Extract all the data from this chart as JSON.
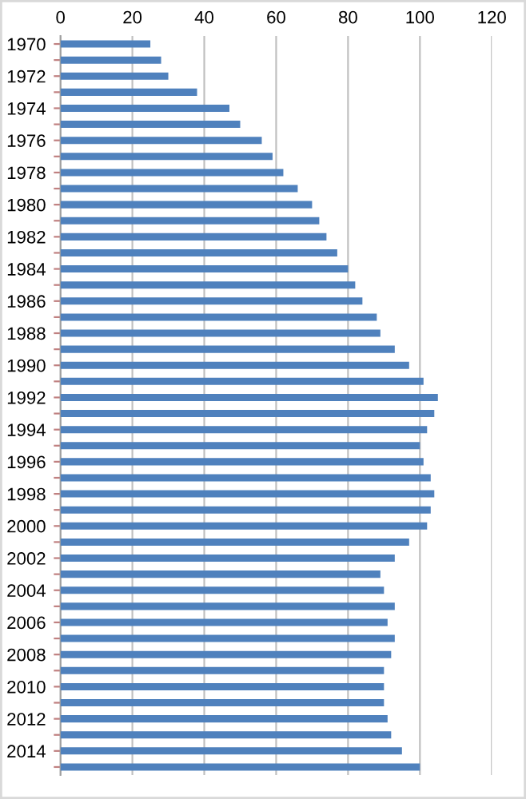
{
  "chart_data": {
    "type": "bar",
    "orientation": "horizontal",
    "categories": [
      "1970",
      null,
      "1972",
      null,
      "1974",
      null,
      "1976",
      null,
      "1978",
      null,
      "1980",
      null,
      "1982",
      null,
      "1984",
      null,
      "1986",
      null,
      "1988",
      null,
      "1990",
      null,
      "1992",
      null,
      "1994",
      null,
      "1996",
      null,
      "1998",
      null,
      "2000",
      null,
      "2002",
      null,
      "2004",
      null,
      "2006",
      null,
      "2008",
      null,
      "2010",
      null,
      "2012",
      null,
      "2014",
      null
    ],
    "values": [
      25,
      28,
      30,
      38,
      47,
      50,
      56,
      59,
      62,
      66,
      70,
      72,
      74,
      77,
      80,
      82,
      84,
      88,
      89,
      93,
      97,
      101,
      105,
      104,
      102,
      100,
      101,
      103,
      104,
      103,
      102,
      97,
      93,
      89,
      90,
      93,
      91,
      93,
      92,
      90,
      90,
      90,
      91,
      92,
      95,
      100
    ],
    "color": "#4f81bd",
    "xlim": [
      0,
      120
    ],
    "xticks": [
      0,
      20,
      40,
      60,
      80,
      100,
      120
    ],
    "grid": "x"
  }
}
